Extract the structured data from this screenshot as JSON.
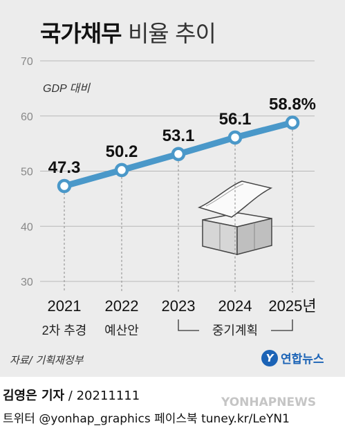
{
  "title": {
    "bold": "국가채무",
    "light": " 비율 추이"
  },
  "unit_label": "GDP 대비",
  "chart_data": {
    "type": "line",
    "x": [
      "2021",
      "2022",
      "2023",
      "2024",
      "2025년"
    ],
    "x_sublabels": [
      "2차 추경",
      "예산안",
      "",
      "",
      ""
    ],
    "series": [
      {
        "values": [
          47.3,
          50.2,
          53.1,
          56.1,
          58.8
        ]
      }
    ],
    "data_labels": [
      "47.3",
      "50.2",
      "53.1",
      "56.1",
      "58.8%"
    ],
    "ylim": [
      30,
      70
    ],
    "yticks": [
      30,
      40,
      50,
      60,
      70
    ],
    "bracket_label": "중기계획",
    "line_color": "#4a98c9"
  },
  "source": "자료/ 기획재정부",
  "logo": {
    "mark": "Y",
    "text": "연합뉴스"
  },
  "credit": {
    "name": "김영은 기자",
    "date": " / 20211111"
  },
  "social": "트위터 @yonhap_graphics  페이스북 tuney.kr/LeYN1",
  "watermark": "YONHAPNEWS"
}
